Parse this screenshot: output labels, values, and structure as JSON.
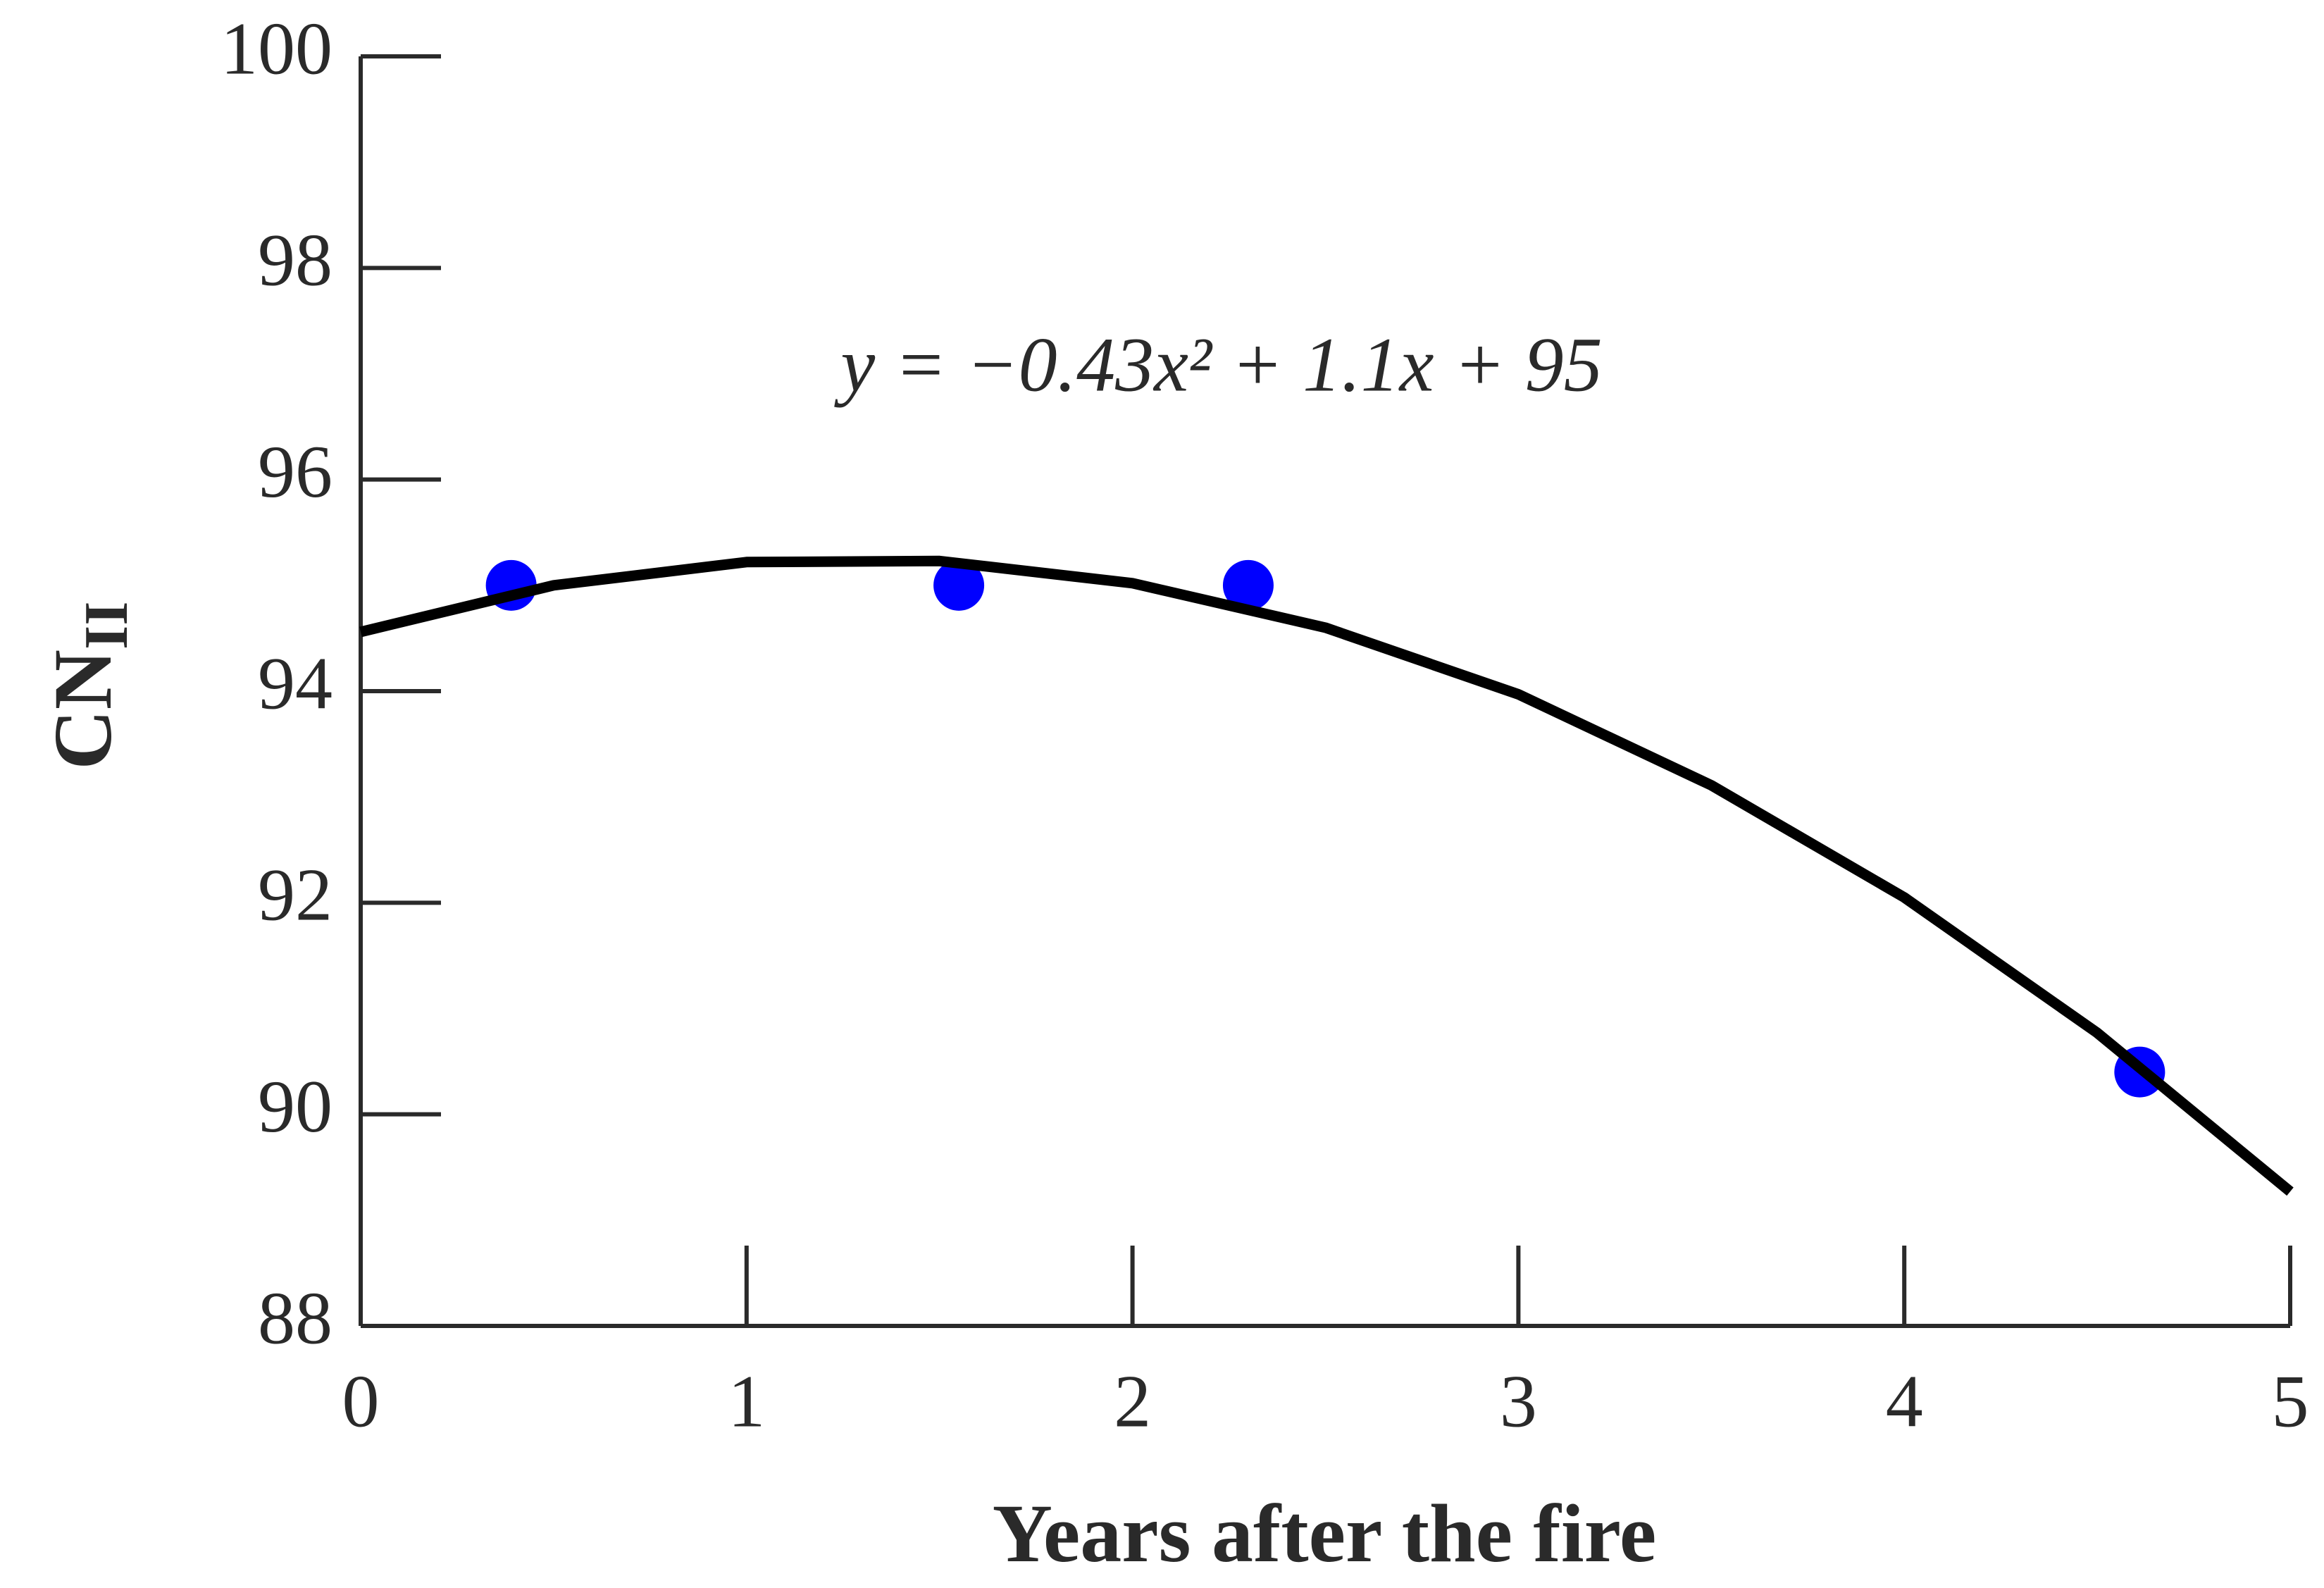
{
  "chart_data": {
    "type": "scatter",
    "x": [
      0.39,
      1.55,
      2.3,
      4.61
    ],
    "values": [
      95.0,
      95.0,
      95.0,
      90.4
    ],
    "color": "#0000ff",
    "fit": {
      "x": [
        0,
        0.5,
        1,
        1.5,
        2,
        2.5,
        3,
        3.5,
        4,
        4.5,
        5
      ],
      "values": [
        94.56,
        95.0,
        95.22,
        95.23,
        95.02,
        94.6,
        93.97,
        93.11,
        92.05,
        90.77,
        89.27
      ],
      "color": "#000000"
    },
    "annotation": "y = −0.43x² + 1.1x + 95",
    "xlabel": "Years after the fire",
    "ylabel": {
      "text": "CN",
      "subscript": "II"
    },
    "xlim": [
      0,
      5
    ],
    "xticks": [
      0,
      1,
      2,
      3,
      4,
      5
    ],
    "ylim": [
      88,
      100
    ],
    "yticks": [
      88,
      90,
      92,
      94,
      96,
      98,
      100
    ]
  }
}
